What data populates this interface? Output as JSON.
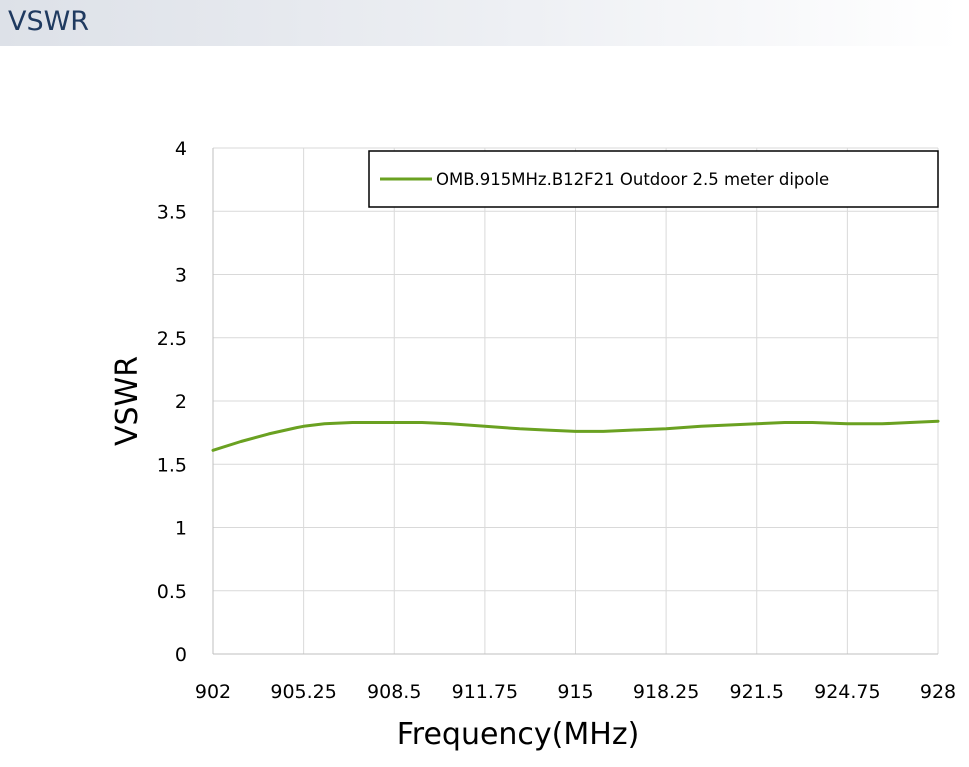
{
  "header": {
    "title": "VSWR"
  },
  "chart_data": {
    "type": "line",
    "title": "",
    "xlabel": "Frequency(MHz)",
    "ylabel": "VSWR",
    "xlim": [
      902,
      928
    ],
    "ylim": [
      0,
      4
    ],
    "x_ticks": [
      "902",
      "905.25",
      "908.5",
      "911.75",
      "915",
      "918.25",
      "921.5",
      "924.75",
      "928"
    ],
    "y_ticks": [
      "0",
      "0.5",
      "1",
      "1.5",
      "2",
      "2.5",
      "3",
      "3.5",
      "4"
    ],
    "grid": true,
    "legend_position": "top-right",
    "series": [
      {
        "name": "OMB.915MHz.B12F21 Outdoor 2.5 meter dipole",
        "color": "#6aa121",
        "x": [
          902,
          903,
          904,
          905,
          905.25,
          906,
          907,
          908.5,
          909.5,
          910.5,
          911.75,
          913,
          914,
          915,
          916,
          917,
          918.25,
          919.5,
          920.5,
          921.5,
          922.5,
          923.5,
          924.75,
          926,
          927,
          928
        ],
        "y": [
          1.61,
          1.68,
          1.74,
          1.79,
          1.8,
          1.82,
          1.83,
          1.83,
          1.83,
          1.82,
          1.8,
          1.78,
          1.77,
          1.76,
          1.76,
          1.77,
          1.78,
          1.8,
          1.81,
          1.82,
          1.83,
          1.83,
          1.82,
          1.82,
          1.83,
          1.84
        ]
      }
    ]
  }
}
